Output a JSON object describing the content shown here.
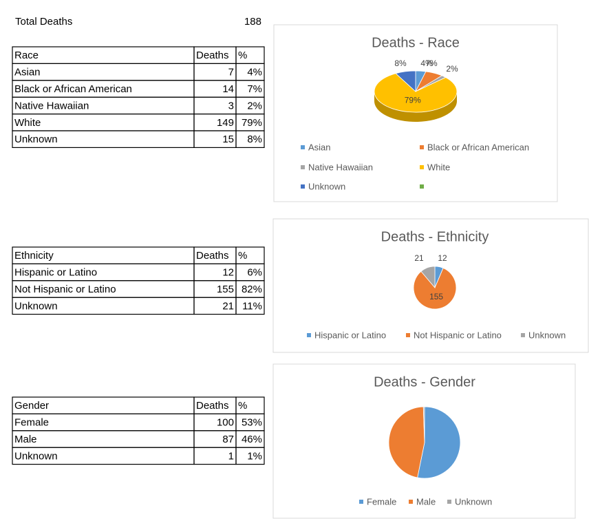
{
  "total": {
    "label": "Total Deaths",
    "value": "188"
  },
  "tables": [
    {
      "header": [
        "Race",
        "Deaths",
        "%"
      ],
      "rows": [
        [
          "Asian",
          "7",
          "4%"
        ],
        [
          "Black or African American",
          "14",
          "7%"
        ],
        [
          "Native Hawaiian",
          "3",
          "2%"
        ],
        [
          "White",
          "149",
          "79%"
        ],
        [
          "Unknown",
          "15",
          "8%"
        ]
      ]
    },
    {
      "header": [
        "Ethnicity",
        "Deaths",
        "%"
      ],
      "rows": [
        [
          "Hispanic or Latino",
          "12",
          "6%"
        ],
        [
          "Not Hispanic or Latino",
          "155",
          "82%"
        ],
        [
          "Unknown",
          "21",
          "11%"
        ]
      ]
    },
    {
      "header": [
        "Gender",
        "Deaths",
        "%"
      ],
      "rows": [
        [
          "Female",
          "100",
          "53%"
        ],
        [
          "Male",
          "87",
          "46%"
        ],
        [
          "Unknown",
          "1",
          "1%"
        ]
      ]
    }
  ],
  "charts": [
    {
      "type": "pie3d",
      "title": "Deaths - Race",
      "categories": [
        "Asian",
        "Black or African American",
        "Native Hawaiian",
        "White",
        "Unknown",
        null
      ],
      "values": [
        4,
        7,
        2,
        79,
        8,
        null
      ],
      "value_labels": [
        "4%",
        "7%",
        "2%",
        "79%",
        "8%",
        null
      ],
      "colors": [
        "#5b9bd5",
        "#ed7d31",
        "#a5a5a5",
        "#ffc000",
        "#4472c4",
        "#70ad47"
      ]
    },
    {
      "type": "pie",
      "title": "Deaths - Ethnicity",
      "categories": [
        "Hispanic or Latino",
        "Not Hispanic or Latino",
        "Unknown"
      ],
      "values": [
        12,
        155,
        21
      ],
      "colors": [
        "#5b9bd5",
        "#ed7d31",
        "#a5a5a5"
      ],
      "data_labels": true
    },
    {
      "type": "pie",
      "title": "Deaths - Gender",
      "categories": [
        "Female",
        "Male",
        "Unknown"
      ],
      "values": [
        100,
        87,
        1
      ],
      "colors": [
        "#5b9bd5",
        "#ed7d31",
        "#a5a5a5"
      ],
      "data_labels": false
    }
  ]
}
